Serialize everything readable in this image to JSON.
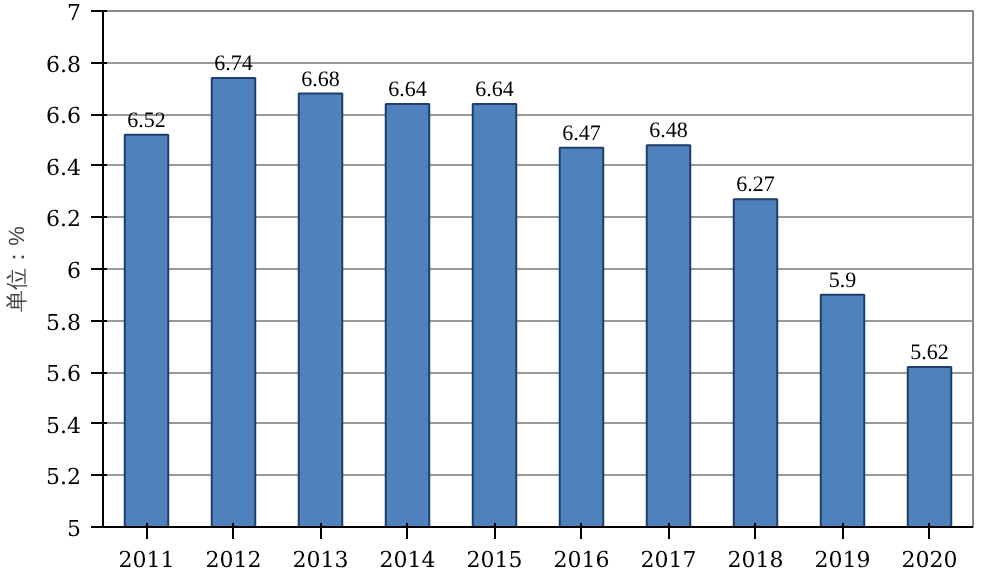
{
  "chart_data": {
    "type": "bar",
    "ylabel": "单位：%",
    "categories": [
      "2011",
      "2012",
      "2013",
      "2014",
      "2015",
      "2016",
      "2017",
      "2018",
      "2019",
      "2020"
    ],
    "values": [
      6.52,
      6.74,
      6.68,
      6.64,
      6.64,
      6.47,
      6.48,
      6.27,
      5.9,
      5.62
    ],
    "color": "#4f81bd",
    "ylim": [
      5,
      7
    ],
    "yticks": [
      5,
      5.2,
      5.4,
      5.6,
      5.8,
      6,
      6.2,
      6.4,
      6.6,
      6.8,
      7
    ],
    "grid": "y",
    "data_labels": true
  }
}
